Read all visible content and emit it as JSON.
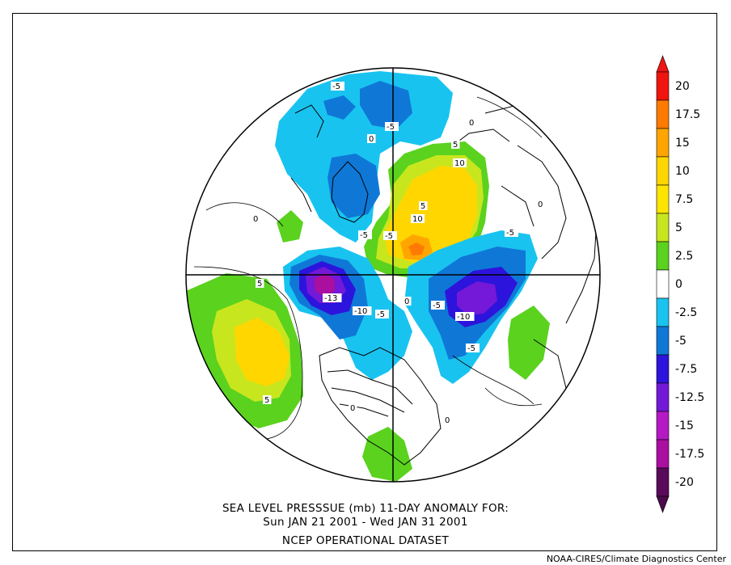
{
  "title": {
    "line1": "SEA LEVEL PRESSSUE (mb)    11-DAY ANOMALY FOR:",
    "line2": "Sun JAN 21 2001 - Wed JAN 31 2001",
    "line3": "NCEP OPERATIONAL DATASET"
  },
  "credit": "NOAA-CIRES/Climate Diagnostics Center",
  "colorbar": {
    "levels": [
      "20",
      "17.5",
      "15",
      "10",
      "7.5",
      "5",
      "2.5",
      "0",
      "-2.5",
      "-5",
      "-7.5",
      "-12.5",
      "-15",
      "-17.5",
      "-20"
    ],
    "colors": [
      "#f0140f",
      "#ff7a00",
      "#ffa500",
      "#ffd600",
      "#ffe400",
      "#c8e61e",
      "#5ad21e",
      "#ffffff",
      "#19c3f0",
      "#0f78d7",
      "#2d14dc",
      "#7319d7",
      "#b419c3",
      "#aa0fa0",
      "#5a0a5a"
    ],
    "over_color": "#f01414",
    "under_color": "#4b0a4b"
  },
  "contour_labels": [
    "-5",
    "0",
    "-5",
    "0",
    "5",
    "10",
    "0",
    "5",
    "-5",
    "10",
    "0",
    "-5",
    "-5",
    "5",
    "-13",
    "-10",
    "-5",
    "-5",
    "-10",
    "-5",
    "0",
    "5",
    "0",
    "0"
  ]
}
